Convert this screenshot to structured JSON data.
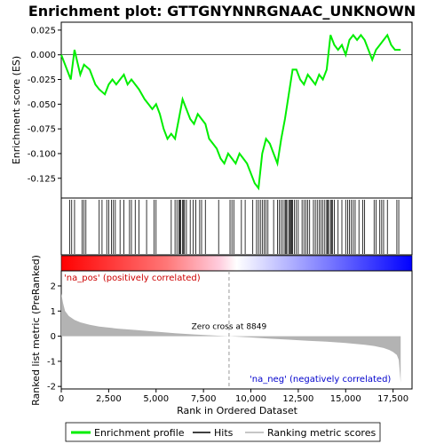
{
  "chart_data": {
    "type": "line",
    "title": "Enrichment plot: GTTGNYNNRGNAAC_UNKNOWN",
    "es_panel": {
      "ylabel": "Enrichment score (ES)",
      "ylim": [
        -0.145,
        0.033
      ],
      "yticks": [
        0.025,
        0.0,
        -0.025,
        -0.05,
        -0.075,
        -0.1,
        -0.125
      ],
      "ytick_labels": [
        "0.025",
        "0.000",
        "-0.025",
        "-0.050",
        "-0.075",
        "-0.100",
        "-0.125"
      ],
      "line_color": "#00ee00",
      "series": [
        {
          "x": [
            0,
            300,
            500,
            700,
            1000,
            1200,
            1500,
            1800,
            2000,
            2300,
            2500,
            2700,
            2900,
            3100,
            3300,
            3500,
            3700,
            3900,
            4100,
            4400,
            4600,
            4800,
            5000,
            5200,
            5400,
            5600,
            5800,
            6000,
            6200,
            6400,
            6600,
            6800,
            7000,
            7200,
            7400,
            7600,
            7800,
            8000,
            8200,
            8400,
            8600,
            8800,
            9000,
            9200,
            9400,
            9600,
            9800,
            10000,
            10200,
            10400,
            10600,
            10800,
            11000,
            11200,
            11400,
            11600,
            11800,
            12000,
            12200,
            12400,
            12600,
            12800,
            13000,
            13200,
            13400,
            13600,
            13800,
            14000,
            14200,
            14400,
            14600,
            14800,
            15000,
            15200,
            15400,
            15600,
            15800,
            16000,
            16200,
            16400,
            16600,
            16800,
            17000,
            17200,
            17400,
            17600,
            17800,
            17900
          ],
          "y": [
            0.0,
            -0.015,
            -0.025,
            0.005,
            -0.02,
            -0.01,
            -0.015,
            -0.03,
            -0.035,
            -0.04,
            -0.03,
            -0.025,
            -0.03,
            -0.025,
            -0.02,
            -0.03,
            -0.025,
            -0.03,
            -0.035,
            -0.045,
            -0.05,
            -0.055,
            -0.05,
            -0.06,
            -0.075,
            -0.085,
            -0.08,
            -0.085,
            -0.065,
            -0.045,
            -0.055,
            -0.065,
            -0.07,
            -0.06,
            -0.065,
            -0.07,
            -0.085,
            -0.09,
            -0.095,
            -0.105,
            -0.11,
            -0.1,
            -0.105,
            -0.11,
            -0.1,
            -0.105,
            -0.11,
            -0.12,
            -0.13,
            -0.135,
            -0.1,
            -0.085,
            -0.09,
            -0.1,
            -0.11,
            -0.085,
            -0.065,
            -0.04,
            -0.015,
            -0.015,
            -0.025,
            -0.03,
            -0.02,
            -0.025,
            -0.03,
            -0.02,
            -0.025,
            -0.015,
            0.02,
            0.01,
            0.005,
            0.01,
            0.0,
            0.015,
            0.02,
            0.015,
            0.02,
            0.015,
            0.005,
            -0.005,
            0.005,
            0.01,
            0.015,
            0.02,
            0.01,
            0.005,
            0.005,
            0.005
          ]
        }
      ]
    },
    "hits": {
      "legend_label": "Hits",
      "x": [
        450,
        550,
        700,
        1100,
        1200,
        1300,
        2000,
        2150,
        2400,
        2500,
        2650,
        2750,
        2850,
        3100,
        3300,
        3600,
        3700,
        3900,
        4100,
        4500,
        4900,
        5000,
        5800,
        6000,
        6100,
        6200,
        6250,
        6300,
        6400,
        6450,
        6500,
        6600,
        6800,
        6950,
        7100,
        7300,
        7400,
        7600,
        8300,
        8900,
        9000,
        9100,
        9500,
        9700,
        10100,
        10300,
        10400,
        10500,
        10600,
        10700,
        10800,
        10900,
        11200,
        11400,
        11500,
        11600,
        11700,
        11800,
        11850,
        11900,
        12000,
        12050,
        12100,
        12150,
        12200,
        12300,
        12400,
        12500,
        12700,
        12800,
        12900,
        13000,
        13100,
        13300,
        13400,
        13500,
        13600,
        13700,
        13800,
        13900,
        14000,
        14050,
        14100,
        14200,
        14250,
        14300,
        14400,
        14600,
        14800,
        15000,
        15100,
        15200,
        15300,
        15400,
        15500,
        15700,
        15900,
        16000,
        16500,
        16600,
        16800,
        16900,
        17000,
        17200,
        17700,
        17800
      ]
    },
    "ranked_panel": {
      "ylabel": "Ranked list metric (PreRanked)",
      "ylim": [
        -2.1,
        2.6
      ],
      "yticks": [
        2,
        1,
        0,
        -1,
        -2
      ],
      "ytick_labels": [
        "2",
        "1",
        "0",
        "-1",
        "-2"
      ],
      "x": [
        0,
        100,
        200,
        400,
        700,
        1000,
        1500,
        2000,
        3000,
        4000,
        5000,
        6000,
        7000,
        8000,
        8849,
        10000,
        11000,
        12000,
        13000,
        14000,
        15000,
        16000,
        16500,
        17000,
        17300,
        17500,
        17700,
        17800,
        17900
      ],
      "y": [
        1.7,
        1.3,
        1.0,
        0.8,
        0.65,
        0.55,
        0.45,
        0.38,
        0.3,
        0.24,
        0.18,
        0.12,
        0.07,
        0.03,
        0.0,
        -0.05,
        -0.1,
        -0.14,
        -0.18,
        -0.22,
        -0.27,
        -0.34,
        -0.39,
        -0.47,
        -0.55,
        -0.63,
        -0.75,
        -0.95,
        -1.85
      ],
      "fill_color": "#b3b3b3",
      "zero_cross_label": "Zero cross at 8849",
      "zero_cross_x": 8849,
      "pos_label": "'na_pos' (positively correlated)",
      "neg_label": "'na_neg' (negatively correlated)",
      "pos_color": "#cc0000",
      "neg_color": "#0000cc"
    },
    "x_axis": {
      "label": "Rank in Ordered Dataset",
      "xlim": [
        0,
        18500
      ],
      "ticks": [
        0,
        2500,
        5000,
        7500,
        10000,
        12500,
        15000,
        17500
      ],
      "tick_labels": [
        "0",
        "2,500",
        "5,000",
        "7,500",
        "10,000",
        "12,500",
        "15,000",
        "17,500"
      ]
    },
    "legend": {
      "items": [
        {
          "label": "Enrichment profile",
          "color": "#00ee00"
        },
        {
          "label": "Hits",
          "color": "#000000"
        },
        {
          "label": "Ranking metric scores",
          "color": "#b3b3b3"
        }
      ]
    }
  }
}
